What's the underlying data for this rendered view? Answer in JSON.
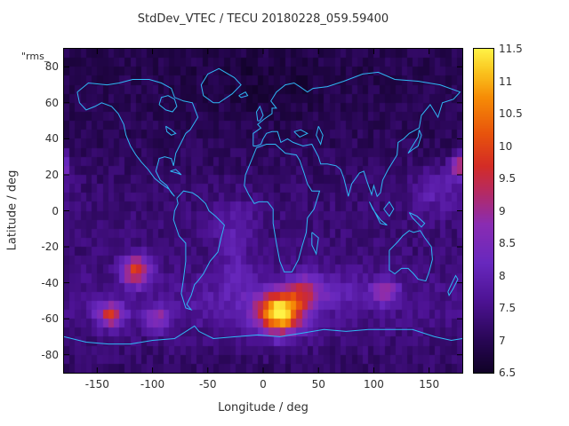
{
  "chart_data": {
    "type": "heatmap",
    "title": "StdDev_VTEC / TECU 20180228_059.59400",
    "corner_label": "\"rms_",
    "xlabel": "Longitude / deg",
    "ylabel": "Latitude / deg",
    "xlim": [
      -180,
      180
    ],
    "ylim": [
      -90,
      90
    ],
    "zlim": [
      6.5,
      11.5
    ],
    "grid_on": false,
    "legend_position": "right-colorbar",
    "grid_step_deg": 5,
    "x_tick_values": [
      -150,
      -100,
      -50,
      0,
      50,
      100,
      150
    ],
    "x_tick_labels": [
      "-150",
      "-100",
      "-50",
      "0",
      "50",
      "100",
      "150"
    ],
    "y_tick_values": [
      -80,
      -60,
      -40,
      -20,
      0,
      20,
      40,
      60,
      80
    ],
    "y_tick_labels": [
      "-80",
      "-60",
      "-40",
      "-20",
      "0",
      "20",
      "40",
      "60",
      "80"
    ],
    "colorbar_tick_values": [
      6.5,
      7,
      7.5,
      8,
      8.5,
      9,
      9.5,
      10,
      10.5,
      11,
      11.5
    ],
    "colorbar_tick_labels": [
      "6.5",
      "7",
      "7.5",
      "8",
      "8.5",
      "9",
      "9.5",
      "10",
      "10.5",
      "11",
      "11.5"
    ],
    "palette_stops": [
      [
        0.0,
        [
          16,
          2,
          38
        ]
      ],
      [
        0.1,
        [
          40,
          6,
          84
        ]
      ],
      [
        0.22,
        [
          76,
          18,
          146
        ]
      ],
      [
        0.34,
        [
          104,
          40,
          190
        ]
      ],
      [
        0.46,
        [
          138,
          44,
          178
        ]
      ],
      [
        0.56,
        [
          182,
          42,
          98
        ]
      ],
      [
        0.64,
        [
          212,
          44,
          38
        ]
      ],
      [
        0.74,
        [
          232,
          84,
          12
        ]
      ],
      [
        0.85,
        [
          246,
          140,
          6
        ]
      ],
      [
        0.93,
        [
          250,
          196,
          30
        ]
      ],
      [
        1.0,
        [
          255,
          242,
          70
        ]
      ]
    ],
    "coastline_color": "#2fb8f5",
    "background_field": {
      "base_by_latitude": [
        [
          -90,
          7.15
        ],
        [
          -70,
          7.35
        ],
        [
          -55,
          7.5
        ],
        [
          -40,
          7.45
        ],
        [
          -25,
          7.32
        ],
        [
          -10,
          7.3
        ],
        [
          0,
          7.3
        ],
        [
          15,
          7.2
        ],
        [
          30,
          7.1
        ],
        [
          45,
          7.0
        ],
        [
          60,
          7.0
        ],
        [
          75,
          6.95
        ],
        [
          90,
          6.95
        ]
      ],
      "noise_amplitude": 0.22,
      "hotspots": [
        {
          "lon": 15,
          "lat": -57,
          "amp": 4.1,
          "slon": 14,
          "slat": 8
        },
        {
          "lon": 38,
          "lat": -45,
          "amp": 1.4,
          "slon": 10,
          "slat": 6
        },
        {
          "lon": -115,
          "lat": -33,
          "amp": 2.5,
          "slon": 9,
          "slat": 6
        },
        {
          "lon": -138,
          "lat": -58,
          "amp": 2.2,
          "slon": 9,
          "slat": 5
        },
        {
          "lon": -95,
          "lat": -60,
          "amp": 1.4,
          "slon": 8,
          "slat": 5
        },
        {
          "lon": 110,
          "lat": -45,
          "amp": 1.8,
          "slon": 8,
          "slat": 5
        },
        {
          "lon": 177,
          "lat": 25,
          "amp": 2.2,
          "slon": 5,
          "slat": 5
        },
        {
          "lon": 158,
          "lat": 12,
          "amp": 0.8,
          "slon": 16,
          "slat": 9
        },
        {
          "lon": -28,
          "lat": -6,
          "amp": 0.5,
          "slon": 16,
          "slat": 10
        },
        {
          "lon": -25,
          "lat": -28,
          "amp": 0.5,
          "slon": 10,
          "slat": 12
        },
        {
          "lon": 60,
          "lat": -45,
          "amp": 0.6,
          "slon": 22,
          "slat": 8
        },
        {
          "lon": -20,
          "lat": -50,
          "amp": 0.45,
          "slon": 40,
          "slat": 10
        },
        {
          "lon": 0,
          "lat": 70,
          "amp": -0.25,
          "slon": 45,
          "slat": 12
        }
      ]
    },
    "coastlines": [
      [
        [
          -168,
          66
        ],
        [
          -158,
          71
        ],
        [
          -141,
          70
        ],
        [
          -130,
          71
        ],
        [
          -118,
          73
        ],
        [
          -103,
          73
        ],
        [
          -92,
          71
        ],
        [
          -83,
          68
        ],
        [
          -80,
          63
        ],
        [
          -72,
          61
        ],
        [
          -64,
          60
        ],
        [
          -59,
          52
        ],
        [
          -66,
          45
        ],
        [
          -70,
          43
        ],
        [
          -74,
          38
        ],
        [
          -79,
          32
        ],
        [
          -81,
          25
        ],
        [
          -83,
          29
        ],
        [
          -89,
          30
        ],
        [
          -94,
          29
        ],
        [
          -97,
          22
        ],
        [
          -93,
          17
        ],
        [
          -87,
          14
        ],
        [
          -83,
          10
        ],
        [
          -80,
          8
        ],
        [
          -85,
          12
        ],
        [
          -92,
          15
        ],
        [
          -98,
          18
        ],
        [
          -104,
          23
        ],
        [
          -110,
          27
        ],
        [
          -115,
          31
        ],
        [
          -120,
          36
        ],
        [
          -124,
          42
        ],
        [
          -126,
          48
        ],
        [
          -131,
          54
        ],
        [
          -137,
          58
        ],
        [
          -146,
          60
        ],
        [
          -152,
          58
        ],
        [
          -160,
          56
        ],
        [
          -166,
          60
        ],
        [
          -168,
          66
        ]
      ],
      [
        [
          -94,
          59
        ],
        [
          -88,
          56
        ],
        [
          -82,
          55
        ],
        [
          -78,
          58
        ],
        [
          -80,
          62
        ],
        [
          -86,
          64
        ],
        [
          -92,
          63
        ],
        [
          -94,
          59
        ]
      ],
      [
        [
          -88,
          47
        ],
        [
          -83,
          45
        ],
        [
          -79,
          43
        ],
        [
          -83,
          42
        ],
        [
          -87,
          44
        ],
        [
          -88,
          47
        ]
      ],
      [
        [
          -45,
          60
        ],
        [
          -54,
          64
        ],
        [
          -56,
          70
        ],
        [
          -50,
          76
        ],
        [
          -40,
          79
        ],
        [
          -26,
          74
        ],
        [
          -20,
          70
        ],
        [
          -28,
          65
        ],
        [
          -40,
          60
        ],
        [
          -45,
          60
        ]
      ],
      [
        [
          -22,
          64
        ],
        [
          -16,
          66
        ],
        [
          -14,
          64
        ],
        [
          -20,
          63
        ],
        [
          -22,
          64
        ]
      ],
      [
        [
          -78,
          7
        ],
        [
          -72,
          11
        ],
        [
          -64,
          10
        ],
        [
          -59,
          8
        ],
        [
          -52,
          4
        ],
        [
          -49,
          0
        ],
        [
          -43,
          -3
        ],
        [
          -35,
          -8
        ],
        [
          -38,
          -15
        ],
        [
          -41,
          -23
        ],
        [
          -48,
          -28
        ],
        [
          -54,
          -35
        ],
        [
          -59,
          -39
        ],
        [
          -62,
          -41
        ],
        [
          -65,
          -47
        ],
        [
          -69,
          -52
        ],
        [
          -65,
          -55
        ],
        [
          -70,
          -54
        ],
        [
          -74,
          -46
        ],
        [
          -72,
          -38
        ],
        [
          -70,
          -28
        ],
        [
          -70,
          -18
        ],
        [
          -76,
          -14
        ],
        [
          -81,
          -5
        ],
        [
          -80,
          0
        ],
        [
          -77,
          4
        ],
        [
          -78,
          7
        ]
      ],
      [
        [
          -84,
          22
        ],
        [
          -78,
          21
        ],
        [
          -74,
          20
        ],
        [
          -79,
          23
        ],
        [
          -84,
          22
        ]
      ],
      [
        [
          -6,
          35
        ],
        [
          3,
          37
        ],
        [
          11,
          37
        ],
        [
          20,
          32
        ],
        [
          30,
          31
        ],
        [
          33,
          28
        ],
        [
          37,
          21
        ],
        [
          40,
          15
        ],
        [
          44,
          11
        ],
        [
          51,
          11
        ],
        [
          46,
          1
        ],
        [
          40,
          -4
        ],
        [
          39,
          -12
        ],
        [
          35,
          -20
        ],
        [
          32,
          -27
        ],
        [
          26,
          -34
        ],
        [
          19,
          -34
        ],
        [
          15,
          -28
        ],
        [
          12,
          -18
        ],
        [
          9,
          -7
        ],
        [
          9,
          1
        ],
        [
          4,
          5
        ],
        [
          -4,
          5
        ],
        [
          -8,
          4
        ],
        [
          -13,
          9
        ],
        [
          -17,
          14
        ],
        [
          -16,
          20
        ],
        [
          -10,
          29
        ],
        [
          -6,
          35
        ]
      ],
      [
        [
          44,
          -12
        ],
        [
          50,
          -15
        ],
        [
          48,
          -24
        ],
        [
          44,
          -19
        ],
        [
          44,
          -12
        ]
      ],
      [
        [
          -9,
          36
        ],
        [
          -9,
          43
        ],
        [
          -2,
          46
        ],
        [
          -5,
          48
        ],
        [
          1,
          51
        ],
        [
          8,
          54
        ],
        [
          8,
          57
        ],
        [
          12,
          57
        ],
        [
          7,
          61
        ],
        [
          12,
          66
        ],
        [
          20,
          70
        ],
        [
          28,
          71
        ],
        [
          33,
          69
        ],
        [
          40,
          66
        ],
        [
          45,
          68
        ],
        [
          58,
          69
        ],
        [
          73,
          72
        ],
        [
          90,
          76
        ],
        [
          104,
          77
        ],
        [
          119,
          73
        ],
        [
          140,
          72
        ],
        [
          160,
          70
        ],
        [
          178,
          66
        ],
        [
          172,
          62
        ],
        [
          162,
          60
        ],
        [
          158,
          52
        ],
        [
          151,
          59
        ],
        [
          143,
          53
        ],
        [
          141,
          46
        ],
        [
          132,
          43
        ],
        [
          127,
          40
        ],
        [
          122,
          38
        ],
        [
          121,
          31
        ],
        [
          113,
          23
        ],
        [
          108,
          17
        ],
        [
          106,
          10
        ],
        [
          103,
          8
        ],
        [
          100,
          14
        ],
        [
          98,
          9
        ],
        [
          94,
          16
        ],
        [
          91,
          22
        ],
        [
          87,
          21
        ],
        [
          80,
          15
        ],
        [
          77,
          8
        ],
        [
          73,
          18
        ],
        [
          70,
          23
        ],
        [
          66,
          25
        ],
        [
          58,
          26
        ],
        [
          52,
          26
        ],
        [
          50,
          30
        ],
        [
          44,
          37
        ],
        [
          36,
          36
        ],
        [
          27,
          38
        ],
        [
          22,
          40
        ],
        [
          16,
          38
        ],
        [
          13,
          44
        ],
        [
          8,
          44
        ],
        [
          3,
          43
        ],
        [
          0,
          40
        ],
        [
          -2,
          37
        ],
        [
          -6,
          36
        ],
        [
          -9,
          36
        ]
      ],
      [
        [
          -5,
          50
        ],
        [
          -6,
          55
        ],
        [
          -3,
          58
        ],
        [
          0,
          53
        ],
        [
          -3,
          50
        ],
        [
          -5,
          50
        ]
      ],
      [
        [
          50,
          47
        ],
        [
          54,
          42
        ],
        [
          52,
          37
        ],
        [
          48,
          42
        ],
        [
          50,
          47
        ]
      ],
      [
        [
          28,
          44
        ],
        [
          34,
          45
        ],
        [
          40,
          43
        ],
        [
          33,
          41
        ],
        [
          28,
          44
        ]
      ],
      [
        [
          141,
          45
        ],
        [
          143,
          42
        ],
        [
          140,
          36
        ],
        [
          135,
          34
        ],
        [
          131,
          32
        ],
        [
          135,
          36
        ],
        [
          140,
          41
        ],
        [
          141,
          45
        ]
      ],
      [
        [
          109,
          1
        ],
        [
          114,
          5
        ],
        [
          118,
          1
        ],
        [
          114,
          -3
        ],
        [
          109,
          1
        ]
      ],
      [
        [
          96,
          5
        ],
        [
          102,
          -2
        ],
        [
          106,
          -7
        ],
        [
          112,
          -8
        ],
        [
          106,
          -5
        ],
        [
          99,
          1
        ],
        [
          96,
          5
        ]
      ],
      [
        [
          132,
          -1
        ],
        [
          139,
          -3
        ],
        [
          146,
          -7
        ],
        [
          143,
          -9
        ],
        [
          135,
          -4
        ],
        [
          132,
          -1
        ]
      ],
      [
        [
          114,
          -22
        ],
        [
          114,
          -33
        ],
        [
          119,
          -35
        ],
        [
          125,
          -32
        ],
        [
          131,
          -32
        ],
        [
          136,
          -35
        ],
        [
          140,
          -38
        ],
        [
          147,
          -39
        ],
        [
          150,
          -34
        ],
        [
          153,
          -27
        ],
        [
          152,
          -20
        ],
        [
          146,
          -15
        ],
        [
          142,
          -11
        ],
        [
          136,
          -12
        ],
        [
          132,
          -11
        ],
        [
          126,
          -14
        ],
        [
          122,
          -17
        ],
        [
          114,
          -22
        ]
      ],
      [
        [
          167,
          -45
        ],
        [
          170,
          -41
        ],
        [
          174,
          -36
        ],
        [
          176,
          -38
        ],
        [
          172,
          -43
        ],
        [
          168,
          -47
        ],
        [
          167,
          -45
        ]
      ],
      [
        [
          -180,
          -70
        ],
        [
          -160,
          -73
        ],
        [
          -140,
          -74
        ],
        [
          -120,
          -74
        ],
        [
          -100,
          -72
        ],
        [
          -80,
          -71
        ],
        [
          -62,
          -64
        ],
        [
          -58,
          -67
        ],
        [
          -45,
          -71
        ],
        [
          -25,
          -70
        ],
        [
          -5,
          -69
        ],
        [
          15,
          -70
        ],
        [
          35,
          -68
        ],
        [
          55,
          -66
        ],
        [
          75,
          -67
        ],
        [
          95,
          -66
        ],
        [
          115,
          -66
        ],
        [
          135,
          -66
        ],
        [
          155,
          -70
        ],
        [
          170,
          -72
        ],
        [
          180,
          -71
        ]
      ]
    ]
  }
}
